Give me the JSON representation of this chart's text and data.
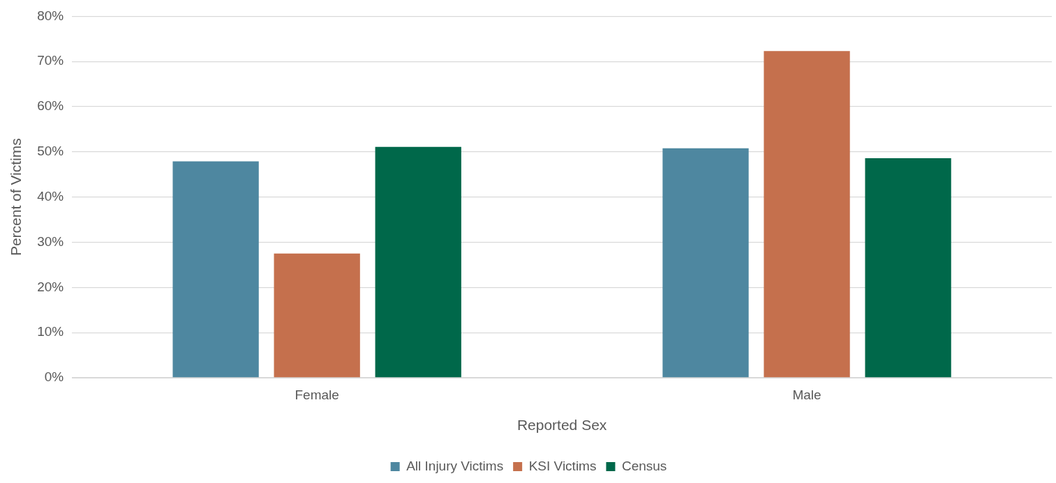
{
  "chart_data": {
    "type": "bar",
    "xlabel": "Reported Sex",
    "ylabel": "Percent of Victims",
    "categories": [
      "Female",
      "Male"
    ],
    "series": [
      {
        "name": "All Injury Victims",
        "color": "#4e87a0",
        "values": [
          47.9,
          50.8
        ]
      },
      {
        "name": "KSI Victims",
        "color": "#c5704d",
        "values": [
          27.5,
          72.3
        ]
      },
      {
        "name": "Census",
        "color": "#00684a",
        "values": [
          51.1,
          48.6
        ]
      }
    ],
    "ylim": [
      0,
      80
    ],
    "yticks": [
      {
        "value": 0,
        "label": "0%"
      },
      {
        "value": 10,
        "label": "10%"
      },
      {
        "value": 20,
        "label": "20%"
      },
      {
        "value": 30,
        "label": "30%"
      },
      {
        "value": 40,
        "label": "40%"
      },
      {
        "value": 50,
        "label": "50%"
      },
      {
        "value": 60,
        "label": "60%"
      },
      {
        "value": 70,
        "label": "70%"
      },
      {
        "value": 80,
        "label": "80%"
      }
    ],
    "grid": "y",
    "legend": "bottom"
  }
}
